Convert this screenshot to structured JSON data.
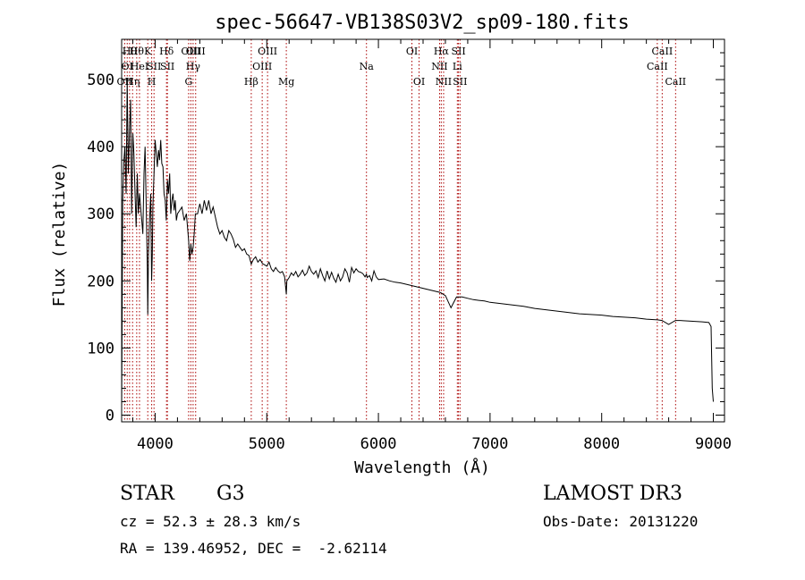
{
  "chart_data": {
    "type": "line",
    "title": "spec-56647-VB138S03V2_sp09-180.fits",
    "xlabel": "Wavelength (Å)",
    "ylabel": "Flux (relative)",
    "xlim": [
      3700,
      9100
    ],
    "ylim": [
      -10,
      560
    ],
    "xticks": [
      4000,
      5000,
      6000,
      7000,
      8000,
      9000
    ],
    "yticks": [
      0,
      100,
      200,
      300,
      400,
      500
    ],
    "grid": false,
    "series": [
      {
        "name": "flux",
        "x": [
          3700,
          3710,
          3720,
          3730,
          3740,
          3750,
          3760,
          3770,
          3780,
          3790,
          3800,
          3810,
          3820,
          3830,
          3840,
          3850,
          3860,
          3870,
          3880,
          3890,
          3900,
          3910,
          3920,
          3930,
          3934,
          3940,
          3950,
          3960,
          3968,
          3975,
          3980,
          3990,
          4000,
          4010,
          4020,
          4030,
          4040,
          4050,
          4060,
          4070,
          4080,
          4090,
          4100,
          4110,
          4120,
          4130,
          4140,
          4150,
          4160,
          4170,
          4180,
          4190,
          4200,
          4220,
          4240,
          4260,
          4280,
          4300,
          4310,
          4320,
          4330,
          4340,
          4350,
          4360,
          4380,
          4400,
          4420,
          4440,
          4460,
          4480,
          4500,
          4520,
          4540,
          4560,
          4580,
          4600,
          4620,
          4640,
          4660,
          4680,
          4700,
          4720,
          4740,
          4760,
          4780,
          4800,
          4820,
          4840,
          4861,
          4880,
          4900,
          4920,
          4940,
          4960,
          4980,
          5000,
          5020,
          5040,
          5060,
          5080,
          5100,
          5120,
          5140,
          5160,
          5175,
          5180,
          5200,
          5220,
          5240,
          5260,
          5280,
          5300,
          5320,
          5340,
          5360,
          5380,
          5400,
          5420,
          5440,
          5460,
          5480,
          5500,
          5520,
          5540,
          5560,
          5580,
          5600,
          5620,
          5640,
          5660,
          5680,
          5700,
          5720,
          5740,
          5760,
          5780,
          5800,
          5820,
          5840,
          5860,
          5880,
          5893,
          5900,
          5920,
          5940,
          5960,
          5980,
          6000,
          6050,
          6100,
          6150,
          6200,
          6250,
          6300,
          6350,
          6400,
          6450,
          6500,
          6550,
          6563,
          6580,
          6600,
          6650,
          6700,
          6750,
          6800,
          6850,
          6900,
          6950,
          7000,
          7100,
          7200,
          7300,
          7400,
          7500,
          7600,
          7700,
          7800,
          7900,
          8000,
          8100,
          8200,
          8300,
          8400,
          8500,
          8540,
          8600,
          8660,
          8700,
          8800,
          8900,
          8960,
          8980,
          8990,
          9000
        ],
        "y": [
          10,
          320,
          380,
          400,
          330,
          500,
          360,
          420,
          470,
          300,
          420,
          390,
          330,
          280,
          360,
          300,
          330,
          310,
          290,
          270,
          360,
          400,
          310,
          220,
          150,
          240,
          290,
          330,
          200,
          240,
          310,
          360,
          410,
          390,
          370,
          395,
          380,
          410,
          375,
          370,
          330,
          320,
          290,
          350,
          330,
          360,
          300,
          320,
          330,
          305,
          320,
          290,
          300,
          305,
          310,
          290,
          300,
          260,
          230,
          255,
          240,
          250,
          270,
          300,
          300,
          315,
          300,
          320,
          305,
          320,
          300,
          310,
          295,
          280,
          270,
          275,
          265,
          260,
          275,
          270,
          262,
          250,
          255,
          250,
          245,
          248,
          240,
          238,
          225,
          232,
          236,
          228,
          232,
          226,
          224,
          222,
          228,
          218,
          214,
          220,
          215,
          212,
          214,
          206,
          180,
          200,
          205,
          212,
          208,
          214,
          206,
          210,
          216,
          208,
          212,
          222,
          214,
          210,
          215,
          205,
          218,
          208,
          200,
          215,
          203,
          213,
          204,
          198,
          210,
          200,
          206,
          218,
          212,
          198,
          220,
          212,
          218,
          214,
          213,
          211,
          206,
          210,
          205,
          208,
          200,
          215,
          206,
          202,
          203,
          200,
          198,
          197,
          195,
          193,
          191,
          189,
          187,
          185,
          183,
          182,
          180,
          178,
          160,
          176,
          176,
          174,
          172,
          171,
          170,
          168,
          166,
          164,
          162,
          159,
          157,
          155,
          153,
          151,
          150,
          149,
          147,
          146,
          145,
          143,
          142,
          141,
          135,
          141,
          141,
          140,
          139,
          138,
          132,
          40,
          20
        ]
      }
    ],
    "lines": [
      {
        "x": 3727,
        "label": "OII",
        "row": 2
      },
      {
        "x": 3750,
        "label": "OI",
        "row": 1
      },
      {
        "x": 3771,
        "label": "Hθ",
        "row": 0
      },
      {
        "x": 3798,
        "label": "Hη",
        "row": 2
      },
      {
        "x": 3835,
        "label": "Hθ",
        "row": 0
      },
      {
        "x": 3860,
        "label": "HeI",
        "row": 1
      },
      {
        "x": 3934,
        "label": "K",
        "row": 0
      },
      {
        "x": 3969,
        "label": "H",
        "row": 2
      },
      {
        "x": 3990,
        "label": "SII",
        "row": 1
      },
      {
        "x": 4102,
        "label": "Hδ",
        "row": 0
      },
      {
        "x": 4110,
        "label": "SII",
        "row": 1
      },
      {
        "x": 4300,
        "label": "G",
        "row": 2
      },
      {
        "x": 4320,
        "label": "OIII",
        "row": 0
      },
      {
        "x": 4340,
        "label": "Hγ",
        "row": 1
      },
      {
        "x": 4363,
        "label": "OIII",
        "row": 0
      },
      {
        "x": 4861,
        "label": "Hβ",
        "row": 2
      },
      {
        "x": 4959,
        "label": "OIII",
        "row": 1
      },
      {
        "x": 5007,
        "label": "OIII",
        "row": 0
      },
      {
        "x": 5175,
        "label": "Mg",
        "row": 2
      },
      {
        "x": 5893,
        "label": "Na",
        "row": 1
      },
      {
        "x": 6300,
        "label": "OI",
        "row": 0
      },
      {
        "x": 6364,
        "label": "OI",
        "row": 2
      },
      {
        "x": 6548,
        "label": "NII",
        "row": 1
      },
      {
        "x": 6563,
        "label": "Hα",
        "row": 0
      },
      {
        "x": 6584,
        "label": "NII",
        "row": 2
      },
      {
        "x": 6707,
        "label": "Li",
        "row": 1
      },
      {
        "x": 6717,
        "label": "SII",
        "row": 0
      },
      {
        "x": 6731,
        "label": "SII",
        "row": 2
      },
      {
        "x": 8498,
        "label": "CaII",
        "row": 1
      },
      {
        "x": 8542,
        "label": "CaII",
        "row": 0
      },
      {
        "x": 8662,
        "label": "CaII",
        "row": 2
      }
    ]
  },
  "footer": {
    "class_label": "STAR",
    "subclass": "G3",
    "survey": "LAMOST DR3",
    "cz": "cz = 52.3 ± 28.3 km/s",
    "obs_date": "Obs-Date: 20131220",
    "radec": "RA = 139.46952, DEC =  -2.62114"
  },
  "colors": {
    "line_marker": "#aa0000",
    "spectrum": "#000000",
    "axis": "#000000"
  }
}
